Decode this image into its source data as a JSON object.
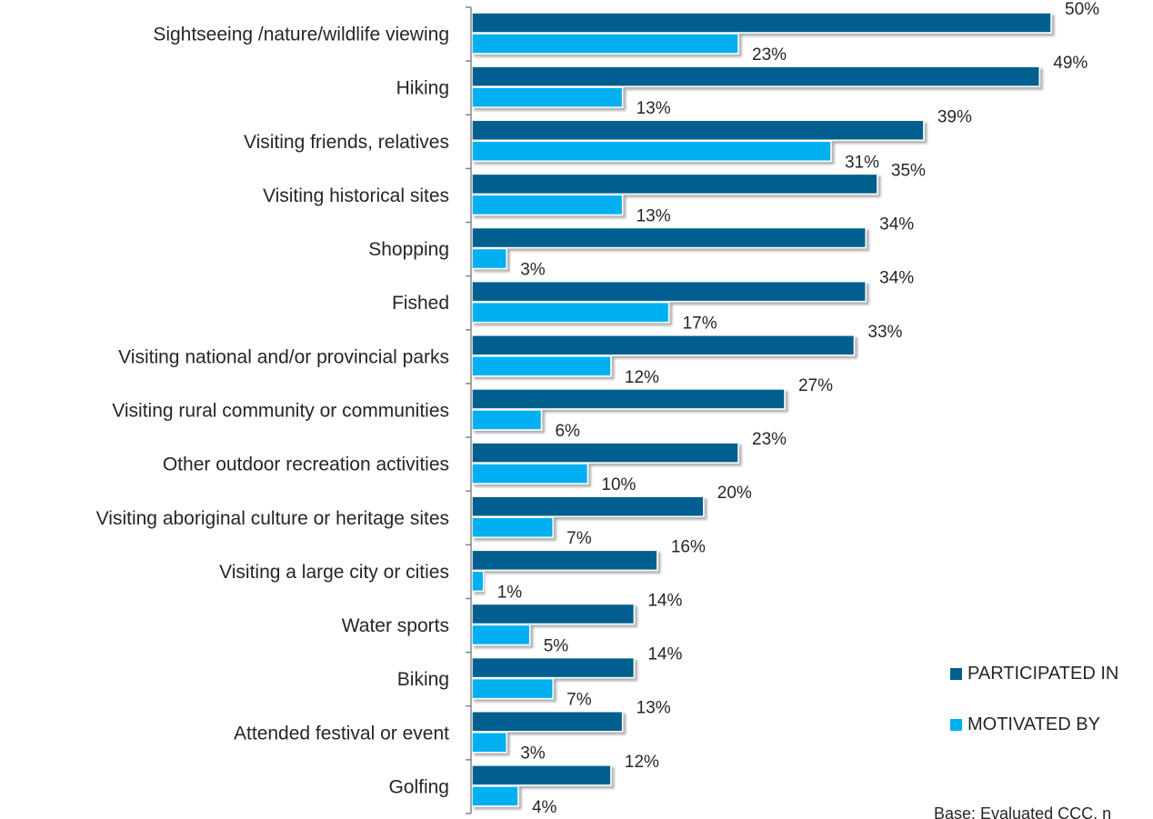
{
  "chart_data": {
    "type": "bar",
    "orientation": "horizontal",
    "categories": [
      "Sightseeing /nature/wildlife viewing",
      "Hiking",
      "Visiting friends, relatives",
      "Visiting historical sites",
      "Shopping",
      "Fished",
      "Visiting national and/or provincial parks",
      "Visiting rural community or communities",
      "Other outdoor recreation activities",
      "Visiting aboriginal culture or heritage sites",
      "Visiting a large city or cities",
      "Water sports",
      "Biking",
      "Attended festival or event",
      "Golfing"
    ],
    "series": [
      {
        "name": "PARTICIPATED IN",
        "color": "#005f8e",
        "values": [
          50,
          49,
          39,
          35,
          34,
          34,
          33,
          27,
          23,
          20,
          16,
          14,
          14,
          13,
          12
        ],
        "labels": [
          "50%",
          "49%",
          "39%",
          "35%",
          "34%",
          "34%",
          "33%",
          "27%",
          "23%",
          "20%",
          "16%",
          "14%",
          "14%",
          "13%",
          "12%"
        ]
      },
      {
        "name": "MOTIVATED BY",
        "color": "#00b0f0",
        "values": [
          23,
          13,
          31,
          13,
          3,
          17,
          12,
          6,
          10,
          7,
          1,
          5,
          7,
          3,
          4
        ],
        "labels": [
          "23%",
          "13%",
          "31%",
          "13%",
          "3%",
          "17%",
          "12%",
          "6%",
          "10%",
          "7%",
          "1%",
          "5%",
          "7%",
          "3%",
          "4%"
        ]
      }
    ],
    "xlim": [
      0,
      50
    ],
    "value_unit": "%",
    "gridlines": false,
    "legend_position": "right",
    "note": "Base: Evaluated CCC, n"
  }
}
